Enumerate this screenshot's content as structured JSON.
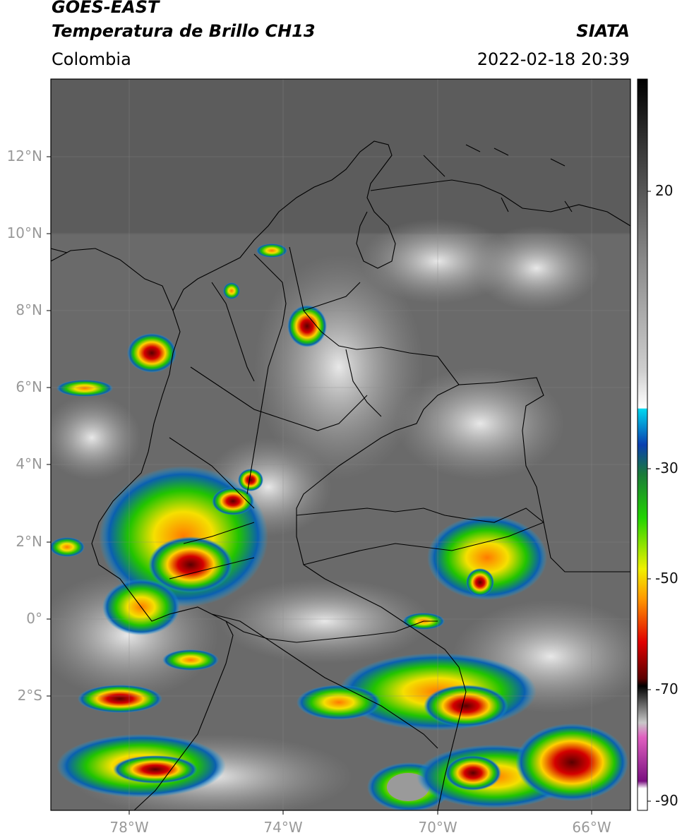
{
  "header": {
    "line1": "GOES-EAST",
    "line2": "Temperatura de Brillo CH13",
    "region": "Colombia",
    "org": "SIATA",
    "datetime": "2022-02-18 20:39"
  },
  "map": {
    "lat_ticks": [
      "12°N",
      "10°N",
      "8°N",
      "6°N",
      "4°N",
      "2°N",
      "0°",
      "2°S"
    ],
    "lon_ticks": [
      "78°W",
      "74°W",
      "70°W",
      "66°W"
    ],
    "background_color": "#6f6f6f",
    "border_color": "#000000"
  },
  "colorbar": {
    "ticks": [
      "20",
      "-30",
      "-50",
      "-70",
      "-90"
    ],
    "unit_hint": "°C"
  }
}
